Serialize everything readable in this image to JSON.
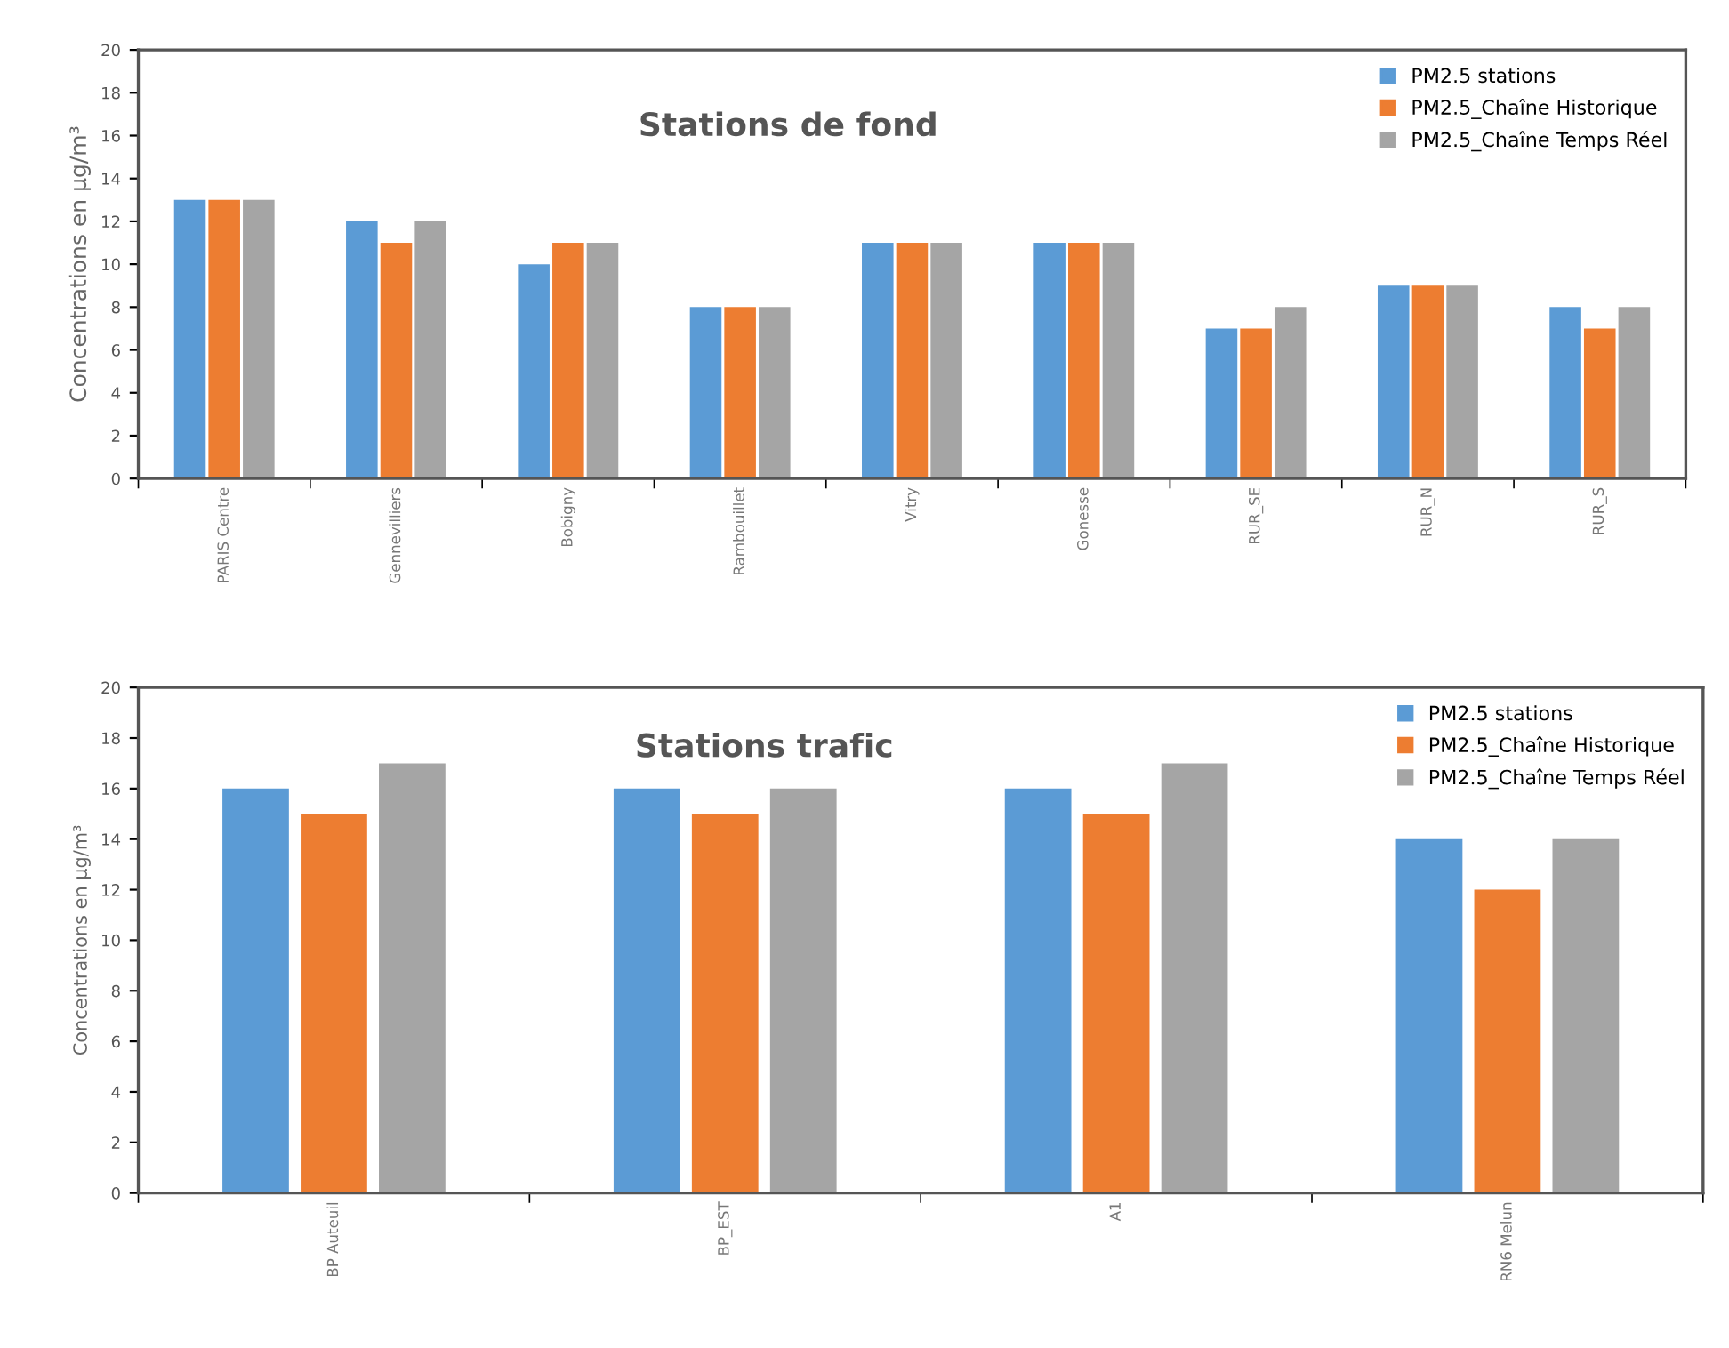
{
  "chart_data": [
    {
      "type": "bar",
      "title": "Stations de fond",
      "ylabel": "Concentrations en µg/m³",
      "categories": [
        "PARIS Centre",
        "Gennevilliers",
        "Bobigny",
        "Rambouillet",
        "Vitry",
        "Gonesse",
        "RUR_SE",
        "RUR_N",
        "RUR_S"
      ],
      "series": [
        {
          "name": "PM2.5 stations",
          "color": "#5b9bd5",
          "values": [
            13,
            12,
            10,
            8,
            11,
            11,
            7,
            9,
            8
          ]
        },
        {
          "name": "PM2.5_Chaîne Historique",
          "color": "#ed7d31",
          "values": [
            13,
            11,
            11,
            8,
            11,
            11,
            7,
            9,
            7
          ]
        },
        {
          "name": "PM2.5_Chaîne Temps Réel",
          "color": "#a5a5a5",
          "values": [
            13,
            12,
            11,
            8,
            11,
            11,
            8,
            9,
            8
          ]
        }
      ],
      "ylim": [
        0,
        20
      ],
      "yticks": [
        0,
        2,
        4,
        6,
        8,
        10,
        12,
        14,
        16,
        18,
        20
      ],
      "grid": false,
      "legend": "top right"
    },
    {
      "type": "bar",
      "title": "Stations trafic",
      "ylabel": "Concentrations en µg/m³",
      "categories": [
        "BP Auteuil",
        "BP_EST",
        "A1",
        "RN6 Melun"
      ],
      "series": [
        {
          "name": "PM2.5 stations",
          "color": "#5b9bd5",
          "values": [
            16,
            16,
            16,
            14
          ]
        },
        {
          "name": "PM2.5_Chaîne Historique",
          "color": "#ed7d31",
          "values": [
            15,
            15,
            15,
            12
          ]
        },
        {
          "name": "PM2.5_Chaîne Temps Réel",
          "color": "#a5a5a5",
          "values": [
            17,
            16,
            17,
            14
          ]
        }
      ],
      "ylim": [
        0,
        20
      ],
      "yticks": [
        0,
        2,
        4,
        6,
        8,
        10,
        12,
        14,
        16,
        18,
        20
      ],
      "grid": false,
      "legend": "top right"
    }
  ]
}
